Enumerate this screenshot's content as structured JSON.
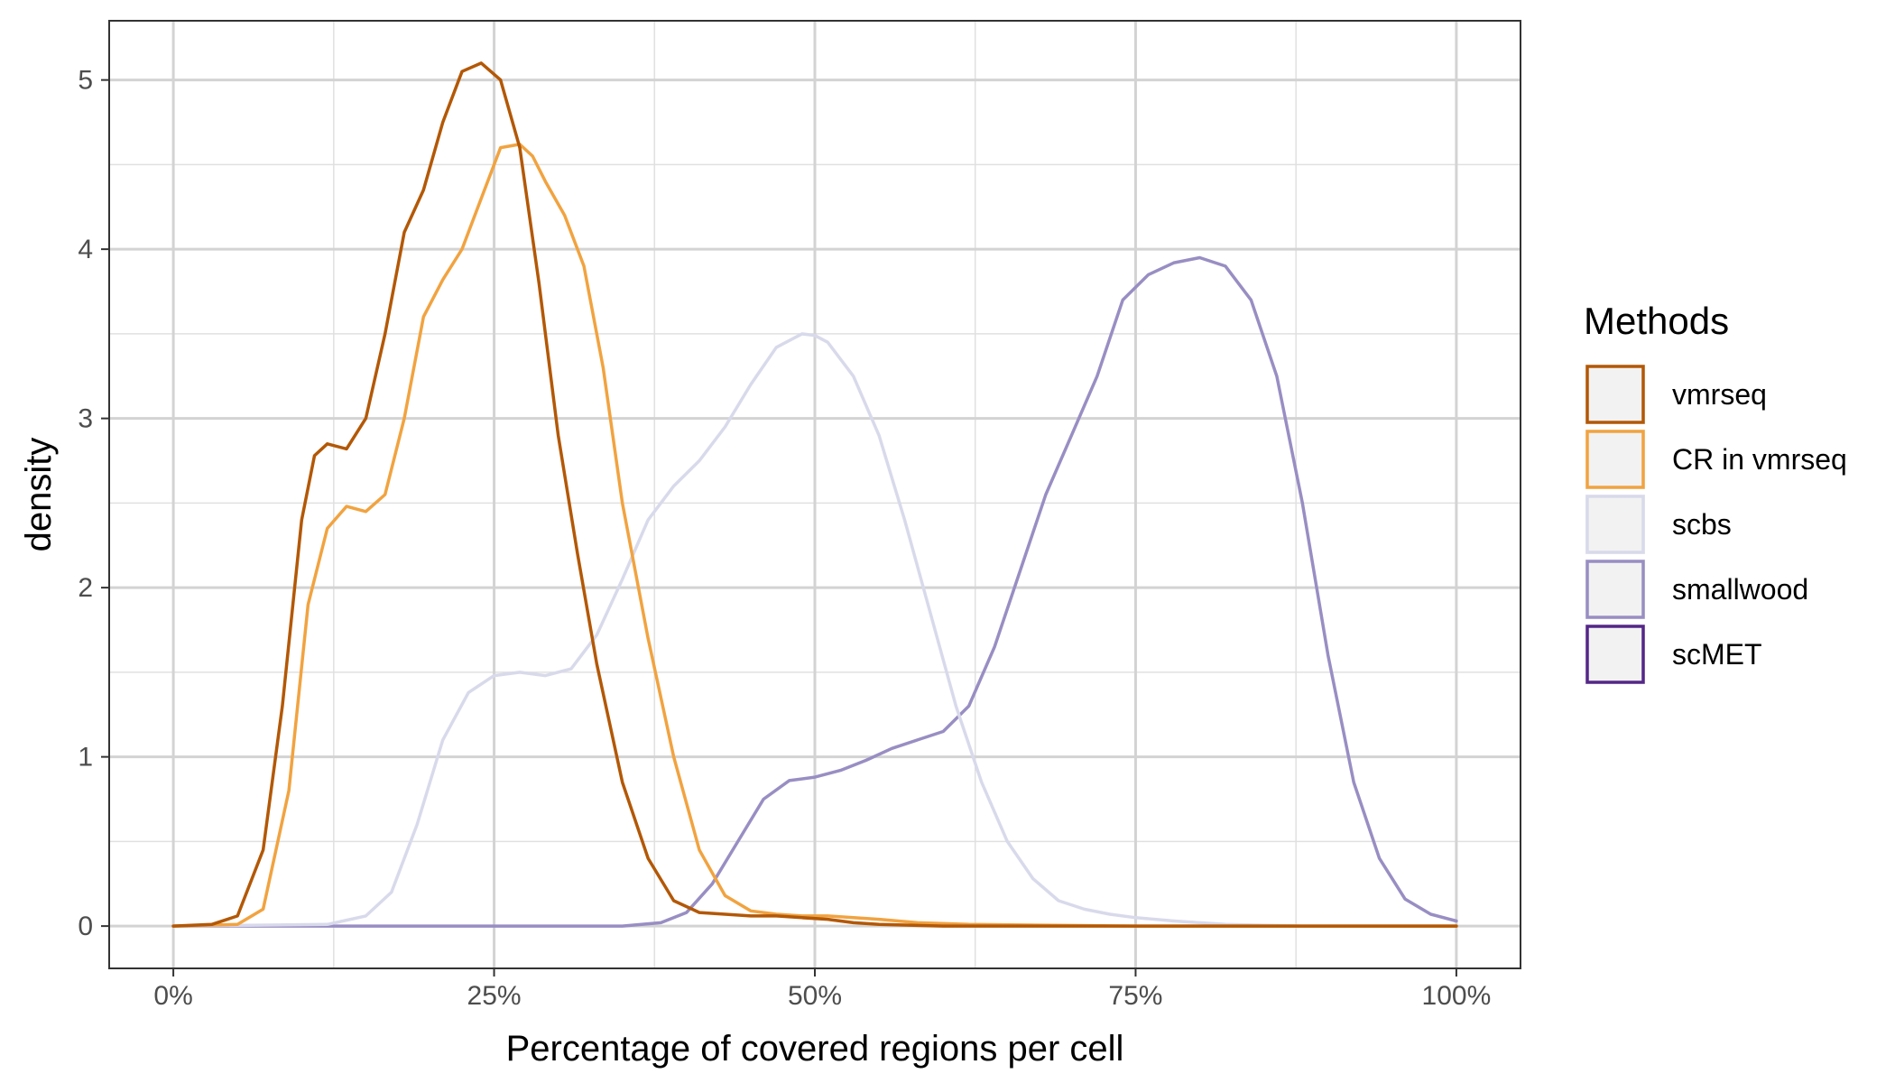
{
  "chart_data": {
    "type": "line",
    "xlabel": "Percentage of covered regions per cell",
    "ylabel": "density",
    "xlim": [
      -0.05,
      1.05
    ],
    "ylim": [
      -0.25,
      5.35
    ],
    "x_ticks": [
      0,
      0.25,
      0.5,
      0.75,
      1.0
    ],
    "x_tick_labels": [
      "0%",
      "25%",
      "50%",
      "75%",
      "100%"
    ],
    "y_ticks": [
      0,
      1,
      2,
      3,
      4,
      5
    ],
    "y_tick_labels": [
      "0",
      "1",
      "2",
      "3",
      "4",
      "5"
    ],
    "grid": true,
    "legend": {
      "title": "Methods",
      "placement": "right",
      "entries": [
        {
          "label": "vmrseq",
          "color": "#b35806"
        },
        {
          "label": "CR in vmrseq",
          "color": "#f1a340"
        },
        {
          "label": "scbs",
          "color": "#d8daeb"
        },
        {
          "label": "smallwood",
          "color": "#998ec3"
        },
        {
          "label": "scMET",
          "color": "#542788"
        }
      ]
    },
    "series": [
      {
        "name": "vmrseq",
        "color": "#b35806",
        "x": [
          0,
          0.03,
          0.05,
          0.07,
          0.085,
          0.1,
          0.11,
          0.12,
          0.135,
          0.15,
          0.165,
          0.18,
          0.195,
          0.21,
          0.225,
          0.24,
          0.255,
          0.27,
          0.285,
          0.3,
          0.315,
          0.33,
          0.35,
          0.37,
          0.39,
          0.41,
          0.43,
          0.45,
          0.47,
          0.49,
          0.51,
          0.53,
          0.55,
          0.6,
          1.0
        ],
        "y": [
          0,
          0.01,
          0.06,
          0.45,
          1.3,
          2.4,
          2.78,
          2.85,
          2.82,
          3.0,
          3.5,
          4.1,
          4.35,
          4.75,
          5.05,
          5.1,
          5.0,
          4.6,
          3.8,
          2.9,
          2.2,
          1.55,
          0.85,
          0.4,
          0.15,
          0.08,
          0.07,
          0.06,
          0.06,
          0.05,
          0.04,
          0.02,
          0.01,
          0,
          0
        ]
      },
      {
        "name": "CR in vmrseq",
        "color": "#f1a340",
        "x": [
          0,
          0.05,
          0.07,
          0.09,
          0.105,
          0.12,
          0.135,
          0.15,
          0.165,
          0.18,
          0.195,
          0.21,
          0.225,
          0.24,
          0.255,
          0.27,
          0.28,
          0.29,
          0.305,
          0.32,
          0.335,
          0.35,
          0.37,
          0.39,
          0.41,
          0.43,
          0.45,
          0.47,
          0.49,
          0.51,
          0.53,
          0.55,
          0.58,
          0.62,
          0.75,
          1.0
        ],
        "y": [
          0,
          0.01,
          0.1,
          0.8,
          1.9,
          2.35,
          2.48,
          2.45,
          2.55,
          3.0,
          3.6,
          3.82,
          4.0,
          4.3,
          4.6,
          4.62,
          4.55,
          4.4,
          4.2,
          3.9,
          3.3,
          2.5,
          1.7,
          1.0,
          0.45,
          0.18,
          0.09,
          0.07,
          0.06,
          0.06,
          0.05,
          0.04,
          0.02,
          0.01,
          0,
          0
        ]
      },
      {
        "name": "scbs",
        "color": "#d8daeb",
        "x": [
          0,
          0.12,
          0.15,
          0.17,
          0.19,
          0.21,
          0.23,
          0.25,
          0.27,
          0.29,
          0.31,
          0.33,
          0.35,
          0.37,
          0.39,
          0.41,
          0.43,
          0.45,
          0.47,
          0.49,
          0.5,
          0.51,
          0.53,
          0.55,
          0.57,
          0.59,
          0.61,
          0.63,
          0.65,
          0.67,
          0.69,
          0.71,
          0.73,
          0.75,
          0.78,
          0.82,
          0.88,
          1.0
        ],
        "y": [
          0,
          0.01,
          0.06,
          0.2,
          0.6,
          1.1,
          1.38,
          1.48,
          1.5,
          1.48,
          1.52,
          1.72,
          2.05,
          2.4,
          2.6,
          2.75,
          2.95,
          3.2,
          3.42,
          3.5,
          3.49,
          3.45,
          3.25,
          2.9,
          2.4,
          1.85,
          1.3,
          0.85,
          0.5,
          0.28,
          0.15,
          0.1,
          0.07,
          0.05,
          0.03,
          0.01,
          0,
          0
        ]
      },
      {
        "name": "smallwood",
        "color": "#998ec3",
        "x": [
          0,
          0.35,
          0.38,
          0.4,
          0.42,
          0.44,
          0.46,
          0.48,
          0.5,
          0.52,
          0.54,
          0.56,
          0.58,
          0.6,
          0.62,
          0.64,
          0.66,
          0.68,
          0.7,
          0.72,
          0.74,
          0.76,
          0.78,
          0.8,
          0.82,
          0.84,
          0.86,
          0.88,
          0.9,
          0.92,
          0.94,
          0.96,
          0.98,
          1.0
        ],
        "y": [
          0,
          0,
          0.02,
          0.08,
          0.25,
          0.5,
          0.75,
          0.86,
          0.88,
          0.92,
          0.98,
          1.05,
          1.1,
          1.15,
          1.3,
          1.65,
          2.1,
          2.55,
          2.9,
          3.25,
          3.7,
          3.85,
          3.92,
          3.95,
          3.9,
          3.7,
          3.25,
          2.5,
          1.6,
          0.85,
          0.4,
          0.16,
          0.07,
          0.03
        ]
      }
    ]
  }
}
